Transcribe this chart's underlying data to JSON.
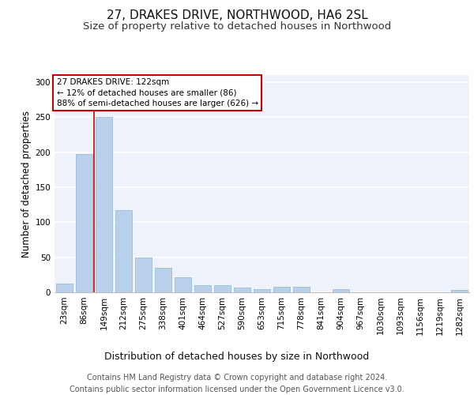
{
  "title1": "27, DRAKES DRIVE, NORTHWOOD, HA6 2SL",
  "title2": "Size of property relative to detached houses in Northwood",
  "xlabel": "Distribution of detached houses by size in Northwood",
  "ylabel": "Number of detached properties",
  "categories": [
    "23sqm",
    "86sqm",
    "149sqm",
    "212sqm",
    "275sqm",
    "338sqm",
    "401sqm",
    "464sqm",
    "527sqm",
    "590sqm",
    "653sqm",
    "715sqm",
    "778sqm",
    "841sqm",
    "904sqm",
    "967sqm",
    "1030sqm",
    "1093sqm",
    "1156sqm",
    "1219sqm",
    "1282sqm"
  ],
  "values": [
    12,
    197,
    250,
    117,
    50,
    35,
    21,
    10,
    10,
    7,
    5,
    8,
    8,
    0,
    4,
    0,
    0,
    0,
    0,
    0,
    3
  ],
  "bar_color": "#b8d0ea",
  "bar_edge_color": "#8fb8d8",
  "vline_color": "#cc0000",
  "annotation_text": "27 DRAKES DRIVE: 122sqm\n← 12% of detached houses are smaller (86)\n88% of semi-detached houses are larger (626) →",
  "annotation_box_color": "#ffffff",
  "annotation_box_edge_color": "#cc0000",
  "ylim": [
    0,
    310
  ],
  "yticks": [
    0,
    50,
    100,
    150,
    200,
    250,
    300
  ],
  "footer_text": "Contains HM Land Registry data © Crown copyright and database right 2024.\nContains public sector information licensed under the Open Government Licence v3.0.",
  "bg_color": "#eef2fb",
  "grid_color": "#ffffff",
  "title1_fontsize": 11,
  "title2_fontsize": 9.5,
  "xlabel_fontsize": 9,
  "ylabel_fontsize": 8.5,
  "footer_fontsize": 7,
  "tick_fontsize": 7.5,
  "ann_fontsize": 7.5
}
